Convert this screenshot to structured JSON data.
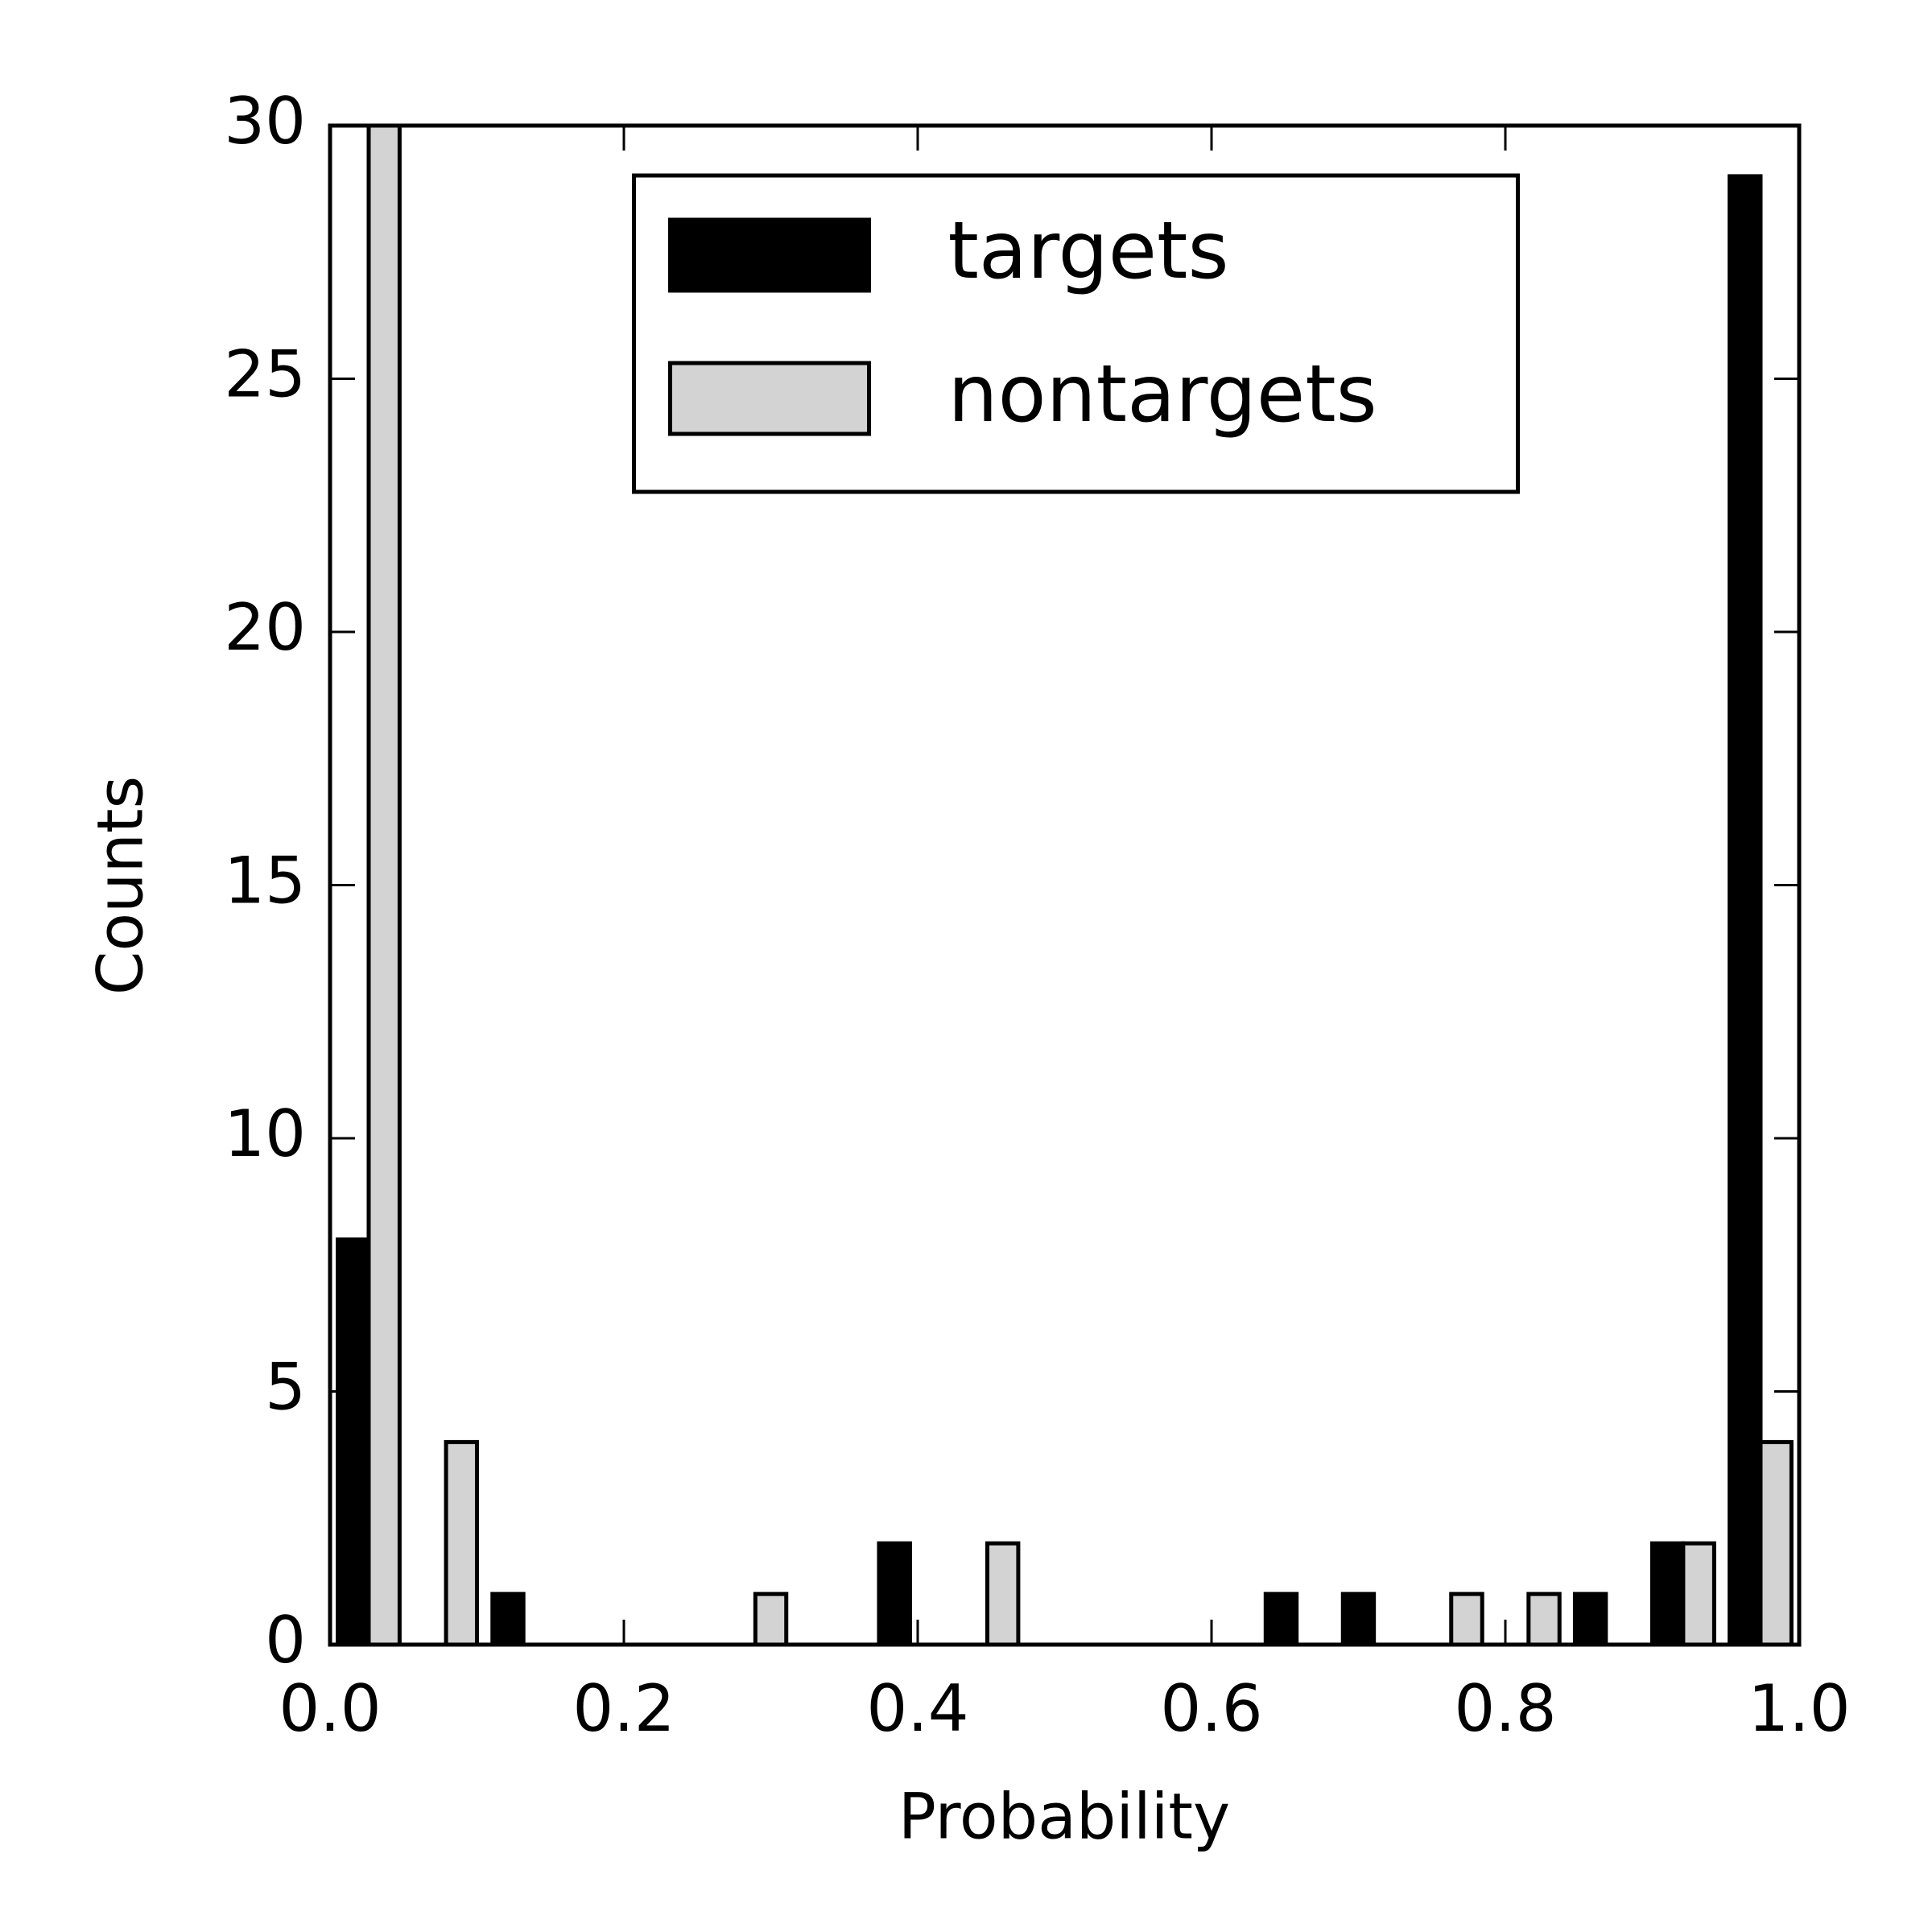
{
  "chart_data": {
    "type": "histogram",
    "xlabel": "Probability",
    "ylabel": "Counts",
    "bins": [
      0,
      0.0526,
      0.1053,
      0.1579,
      0.2105,
      0.2632,
      0.3158,
      0.3684,
      0.4211,
      0.4737,
      0.5263,
      0.5789,
      0.6316,
      0.6842,
      0.7368,
      0.7895,
      0.8421,
      0.8947,
      0.9474,
      1
    ],
    "series": [
      {
        "name": "targets",
        "color": "#000000",
        "values": [
          8,
          0,
          1,
          0,
          0,
          0,
          0,
          2,
          0,
          0,
          0,
          0,
          1,
          1,
          0,
          0,
          1,
          2,
          29
        ]
      },
      {
        "name": "nontargets",
        "color": "#d3d3d3",
        "values": [
          30,
          4,
          0,
          0,
          0,
          1,
          0,
          0,
          2,
          0,
          0,
          0,
          0,
          0,
          1,
          1,
          0,
          2,
          4
        ]
      }
    ],
    "edgecolor": "#000000",
    "xlim": [
      0,
      1
    ],
    "ylim": [
      0,
      30
    ],
    "xticks": [
      {
        "value": 0,
        "label": "0.0"
      },
      {
        "value": 0.2,
        "label": "0.2"
      },
      {
        "value": 0.4,
        "label": "0.4"
      },
      {
        "value": 0.6,
        "label": "0.6"
      },
      {
        "value": 0.8,
        "label": "0.8"
      },
      {
        "value": 1,
        "label": "1.0"
      }
    ],
    "yticks": [
      0,
      5,
      10,
      15,
      20,
      25,
      30
    ],
    "legend": "upper center"
  }
}
